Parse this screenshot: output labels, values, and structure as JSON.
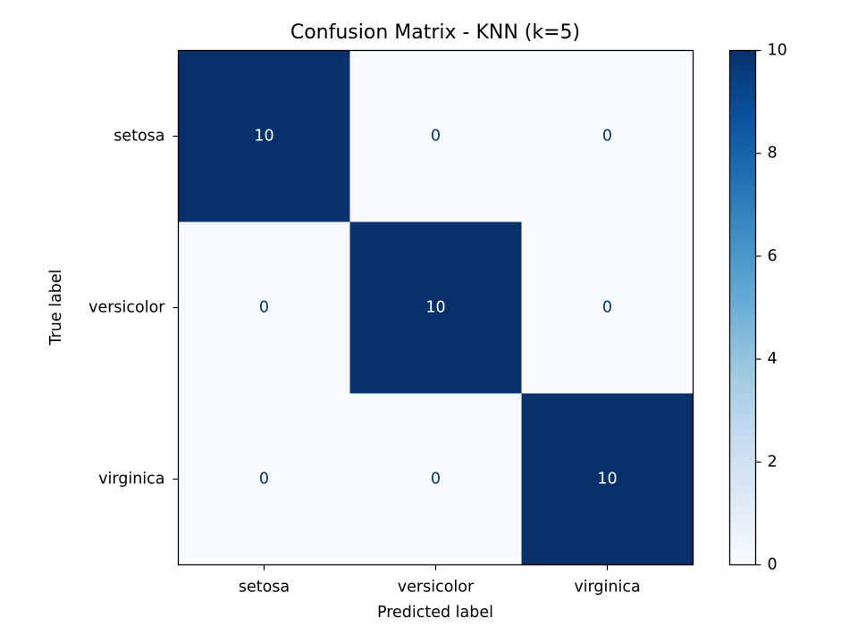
{
  "chart_data": {
    "type": "heatmap",
    "title": "Confusion Matrix - KNN (k=5)",
    "xlabel": "Predicted label",
    "ylabel": "True label",
    "x_categories": [
      "setosa",
      "versicolor",
      "virginica"
    ],
    "y_categories": [
      "setosa",
      "versicolor",
      "virginica"
    ],
    "values": [
      [
        10,
        0,
        0
      ],
      [
        0,
        10,
        0
      ],
      [
        0,
        0,
        10
      ]
    ],
    "colormap": "Blues",
    "color_low": "#f7fbff",
    "color_high": "#08306b",
    "text_color_on_dark": "#ffffff",
    "text_color_on_light": "#08306b",
    "colorbar": {
      "range": [
        0,
        10
      ],
      "ticks": [
        "0",
        "2",
        "4",
        "6",
        "8",
        "10"
      ]
    }
  }
}
